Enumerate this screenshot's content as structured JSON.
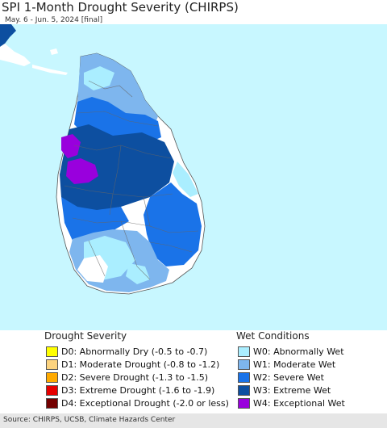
{
  "header": {
    "title": "SPI 1-Month Drought Severity (CHIRPS)",
    "subtitle": "May. 6 - Jun. 5, 2024 [final]"
  },
  "legend": {
    "drought": {
      "title": "Drought Severity",
      "items": [
        {
          "label": "D0: Abnormally Dry (-0.5 to -0.7)",
          "color": "#ffff00"
        },
        {
          "label": "D1: Moderate Drought (-0.8 to -1.2)",
          "color": "#fcd37f"
        },
        {
          "label": "D2: Severe Drought (-1.3 to -1.5)",
          "color": "#ffaa00"
        },
        {
          "label": "D3: Extreme Drought (-1.6 to -1.9)",
          "color": "#e60000"
        },
        {
          "label": "D4: Exceptional Drought (-2.0 or less)",
          "color": "#730000"
        }
      ]
    },
    "wet": {
      "title": "Wet Conditions",
      "items": [
        {
          "label": "W0: Abnormally Wet",
          "color": "#aaeeff"
        },
        {
          "label": "W1: Moderate Wet",
          "color": "#7eb6ee"
        },
        {
          "label": "W2: Severe Wet",
          "color": "#1a73e8"
        },
        {
          "label": "W3: Extreme Wet",
          "color": "#0d4fa0"
        },
        {
          "label": "W4: Exceptional Wet",
          "color": "#9900dd"
        }
      ]
    }
  },
  "map": {
    "ocean_color": "#c8f7ff",
    "land_color": "#ffffff",
    "icon": "sri-lanka-map"
  },
  "footer": {
    "source": "Source: CHIRPS, UCSB, Climate Hazards Center"
  }
}
